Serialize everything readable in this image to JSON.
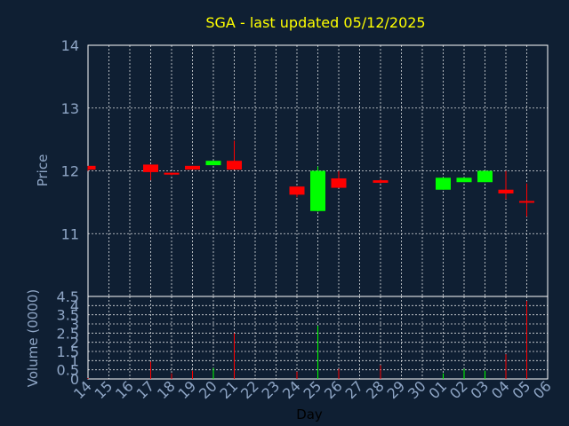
{
  "chart_data": [
    {
      "type": "candlestick",
      "title": "SGA - last updated 05/12/2025",
      "ylabel": "Price",
      "xlabel": "",
      "ylim": [
        10.0,
        14.0
      ],
      "yticks": [
        "11",
        "12",
        "13",
        "14"
      ],
      "grid": true,
      "colors": {
        "up": "#00ff00",
        "down": "#ff0000"
      },
      "x": [
        "14",
        "15",
        "16",
        "17",
        "18",
        "19",
        "20",
        "21",
        "22",
        "23",
        "24",
        "25",
        "26",
        "27",
        "28",
        "29",
        "30",
        "01",
        "02",
        "03",
        "04",
        "05",
        "06"
      ],
      "candles": [
        {
          "x": "14",
          "open": 12.08,
          "close": 12.02,
          "high": 12.08,
          "low": 12.0
        },
        {
          "x": "17",
          "open": 12.1,
          "close": 11.98,
          "high": 12.1,
          "low": 11.85
        },
        {
          "x": "18",
          "open": 11.97,
          "close": 11.94,
          "high": 11.97,
          "low": 11.93
        },
        {
          "x": "19",
          "open": 12.08,
          "close": 12.02,
          "high": 12.08,
          "low": 12.02
        },
        {
          "x": "20",
          "open": 12.09,
          "close": 12.16,
          "high": 12.16,
          "low": 12.09
        },
        {
          "x": "21",
          "open": 12.16,
          "close": 12.02,
          "high": 12.48,
          "low": 12.02
        },
        {
          "x": "24",
          "open": 11.75,
          "close": 11.62,
          "high": 11.75,
          "low": 11.58
        },
        {
          "x": "25",
          "open": 11.36,
          "close": 12.0,
          "high": 12.07,
          "low": 11.35
        },
        {
          "x": "26",
          "open": 11.88,
          "close": 11.73,
          "high": 12.0,
          "low": 11.73
        },
        {
          "x": "28",
          "open": 11.85,
          "close": 11.81,
          "high": 11.87,
          "low": 11.8
        },
        {
          "x": "01",
          "open": 11.7,
          "close": 11.89,
          "high": 11.89,
          "low": 11.7
        },
        {
          "x": "02",
          "open": 11.82,
          "close": 11.89,
          "high": 11.89,
          "low": 11.82
        },
        {
          "x": "03",
          "open": 11.82,
          "close": 12.0,
          "high": 12.0,
          "low": 11.82
        },
        {
          "x": "04",
          "open": 11.7,
          "close": 11.64,
          "high": 12.0,
          "low": 11.55
        },
        {
          "x": "05",
          "open": 11.52,
          "close": 11.51,
          "high": 11.8,
          "low": 11.27
        }
      ]
    },
    {
      "type": "bar",
      "ylabel": "Volume (0000)",
      "xlabel": "Day",
      "ylim": [
        0,
        4.5
      ],
      "yticks": [
        "0",
        "0.5",
        "1",
        "1.5",
        "2",
        "2.5",
        "3",
        "3.5",
        "4",
        "4.5"
      ],
      "grid": true,
      "categories": [
        "14",
        "15",
        "16",
        "17",
        "18",
        "19",
        "20",
        "21",
        "22",
        "23",
        "24",
        "25",
        "26",
        "27",
        "28",
        "29",
        "30",
        "01",
        "02",
        "03",
        "04",
        "05",
        "06"
      ],
      "values": [
        0.05,
        0,
        0,
        0.95,
        0.3,
        0.45,
        0.6,
        2.5,
        0,
        0,
        0.4,
        2.9,
        0.55,
        0,
        0.75,
        0,
        0,
        0.3,
        0.55,
        0.45,
        1.35,
        4.25,
        0
      ],
      "direction": [
        "down",
        "",
        "",
        "down",
        "down",
        "down",
        "up",
        "down",
        "",
        "",
        "down",
        "up",
        "down",
        "",
        "down",
        "",
        "",
        "up",
        "up",
        "up",
        "down",
        "down",
        ""
      ]
    }
  ]
}
